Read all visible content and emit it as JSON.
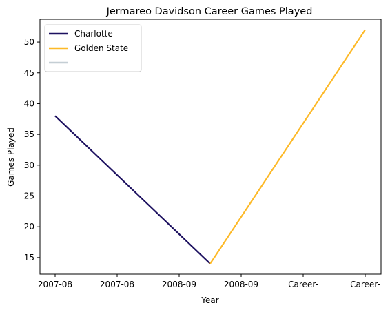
{
  "chart_data": {
    "type": "line",
    "title": "Jermareo Davidson Career Games Played",
    "xlabel": "Year",
    "ylabel": "Games Played",
    "x_tick_labels": [
      "2007-08",
      "2007-08",
      "2008-09",
      "2008-09",
      "Career-",
      "Career-"
    ],
    "ylim": [
      12.3,
      53.7
    ],
    "y_ticks": [
      15,
      20,
      25,
      30,
      35,
      40,
      45,
      50
    ],
    "grid": false,
    "legend_position": "top-left",
    "series": [
      {
        "name": "Charlotte",
        "color": "#1d1160",
        "points": [
          {
            "x": 0,
            "y": 38
          },
          {
            "x": 2.5,
            "y": 14
          }
        ]
      },
      {
        "name": "Golden State",
        "color": "#fdb927",
        "points": [
          {
            "x": 2.5,
            "y": 14
          },
          {
            "x": 5,
            "y": 52
          }
        ]
      },
      {
        "name": "-",
        "color": "#c4ced4",
        "points": []
      }
    ]
  }
}
